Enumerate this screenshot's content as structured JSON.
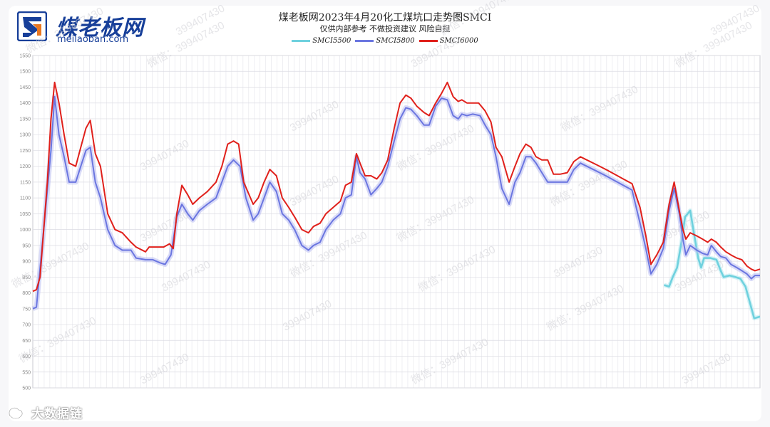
{
  "logo": {
    "name_cn": "煤老板网",
    "domain": "meilaoban.com"
  },
  "watermark": {
    "text": "399407430",
    "prefix": "微信："
  },
  "footer": {
    "brand": "大数据链"
  },
  "colors": {
    "SMCI5500": "#6fd1de",
    "SMCI5800": "#6b76e0",
    "SMCI6000": "#e0201b",
    "brand": "#173f99"
  },
  "chart_data": {
    "type": "line",
    "title": "煤老板网2023年4月20化工煤坑口走势图SMCI",
    "subtitle": "仅供内部参考 不做投资建议 风险自担",
    "ylim": [
      500,
      1550
    ],
    "yticks": [
      500,
      550,
      600,
      650,
      700,
      750,
      800,
      850,
      900,
      950,
      1000,
      1050,
      1100,
      1150,
      1200,
      1250,
      1300,
      1350,
      1400,
      1450,
      1500,
      1550
    ],
    "xlim": [
      0,
      100
    ],
    "grid": true,
    "legend_position": "top-center",
    "series": [
      {
        "name": "SMCI5500",
        "points": [
          [
            86.8,
            825
          ],
          [
            87.5,
            820
          ],
          [
            88.0,
            850
          ],
          [
            88.6,
            880
          ],
          [
            89.2,
            960
          ],
          [
            89.7,
            1040
          ],
          [
            90.4,
            1060
          ],
          [
            90.9,
            990
          ],
          [
            91.5,
            910
          ],
          [
            91.9,
            880
          ],
          [
            92.3,
            910
          ],
          [
            93.2,
            910
          ],
          [
            94.0,
            905
          ],
          [
            94.6,
            870
          ],
          [
            95.0,
            850
          ],
          [
            95.8,
            855
          ],
          [
            96.6,
            850
          ],
          [
            97.3,
            845
          ],
          [
            98.0,
            820
          ],
          [
            98.6,
            770
          ],
          [
            99.2,
            720
          ],
          [
            100.0,
            725
          ]
        ]
      },
      {
        "name": "SMCI5800",
        "points": [
          [
            0,
            750
          ],
          [
            0.5,
            755
          ],
          [
            1.5,
            1000
          ],
          [
            2.5,
            1250
          ],
          [
            3.0,
            1420
          ],
          [
            3.6,
            1300
          ],
          [
            4.3,
            1230
          ],
          [
            5.0,
            1150
          ],
          [
            5.9,
            1150
          ],
          [
            6.6,
            1200
          ],
          [
            7.3,
            1250
          ],
          [
            7.9,
            1260
          ],
          [
            8.6,
            1150
          ],
          [
            9.3,
            1100
          ],
          [
            10.3,
            1000
          ],
          [
            11.3,
            950
          ],
          [
            12.3,
            935
          ],
          [
            13.5,
            935
          ],
          [
            14.2,
            910
          ],
          [
            15.5,
            905
          ],
          [
            16.5,
            905
          ],
          [
            17.5,
            895
          ],
          [
            18.2,
            890
          ],
          [
            19.0,
            920
          ],
          [
            19.8,
            1040
          ],
          [
            20.5,
            1080
          ],
          [
            21.3,
            1050
          ],
          [
            22.0,
            1030
          ],
          [
            22.9,
            1060
          ],
          [
            24.0,
            1080
          ],
          [
            25.2,
            1100
          ],
          [
            26.0,
            1150
          ],
          [
            26.8,
            1200
          ],
          [
            27.6,
            1220
          ],
          [
            28.5,
            1200
          ],
          [
            29.3,
            1100
          ],
          [
            30.3,
            1030
          ],
          [
            31.0,
            1050
          ],
          [
            31.8,
            1100
          ],
          [
            32.6,
            1150
          ],
          [
            33.5,
            1120
          ],
          [
            34.3,
            1050
          ],
          [
            35.2,
            1030
          ],
          [
            36.0,
            1000
          ],
          [
            37.0,
            950
          ],
          [
            37.9,
            935
          ],
          [
            38.6,
            950
          ],
          [
            39.5,
            960
          ],
          [
            40.3,
            1000
          ],
          [
            41.3,
            1030
          ],
          [
            42.3,
            1050
          ],
          [
            43.0,
            1100
          ],
          [
            43.8,
            1110
          ],
          [
            44.5,
            1230
          ],
          [
            45.0,
            1180
          ],
          [
            45.7,
            1160
          ],
          [
            46.5,
            1110
          ],
          [
            47.3,
            1130
          ],
          [
            48.0,
            1150
          ],
          [
            48.8,
            1200
          ],
          [
            49.7,
            1280
          ],
          [
            50.5,
            1350
          ],
          [
            51.3,
            1385
          ],
          [
            52.0,
            1380
          ],
          [
            52.8,
            1360
          ],
          [
            53.8,
            1330
          ],
          [
            54.5,
            1330
          ],
          [
            55.4,
            1390
          ],
          [
            56.2,
            1415
          ],
          [
            57.0,
            1410
          ],
          [
            57.8,
            1360
          ],
          [
            58.5,
            1350
          ],
          [
            59.0,
            1365
          ],
          [
            59.7,
            1360
          ],
          [
            60.5,
            1365
          ],
          [
            61.5,
            1360
          ],
          [
            62.2,
            1330
          ],
          [
            63.0,
            1300
          ],
          [
            63.7,
            1230
          ],
          [
            64.5,
            1130
          ],
          [
            65.5,
            1080
          ],
          [
            66.3,
            1150
          ],
          [
            67.0,
            1180
          ],
          [
            67.8,
            1230
          ],
          [
            68.5,
            1230
          ],
          [
            69.2,
            1210
          ],
          [
            70.0,
            1180
          ],
          [
            70.8,
            1150
          ],
          [
            71.6,
            1150
          ],
          [
            72.5,
            1150
          ],
          [
            73.5,
            1150
          ],
          [
            74.4,
            1190
          ],
          [
            75.3,
            1210
          ],
          [
            76.2,
            1200
          ],
          [
            77.5,
            1185
          ],
          [
            78.8,
            1170
          ],
          [
            80.0,
            1155
          ],
          [
            81.2,
            1140
          ],
          [
            82.4,
            1125
          ],
          [
            83.5,
            1020
          ],
          [
            84.3,
            940
          ],
          [
            85.0,
            860
          ],
          [
            85.8,
            890
          ],
          [
            86.7,
            940
          ],
          [
            87.5,
            1060
          ],
          [
            88.2,
            1130
          ],
          [
            88.9,
            1050
          ],
          [
            89.4,
            970
          ],
          [
            89.8,
            920
          ],
          [
            90.4,
            950
          ],
          [
            91.3,
            935
          ],
          [
            92.1,
            925
          ],
          [
            92.8,
            920
          ],
          [
            93.3,
            950
          ],
          [
            94.0,
            930
          ],
          [
            94.6,
            915
          ],
          [
            95.3,
            910
          ],
          [
            96.0,
            890
          ],
          [
            96.8,
            880
          ],
          [
            97.5,
            870
          ],
          [
            98.2,
            860
          ],
          [
            98.8,
            845
          ],
          [
            99.3,
            855
          ],
          [
            100.0,
            855
          ]
        ]
      },
      {
        "name": "SMCI6000",
        "points": [
          [
            0,
            805
          ],
          [
            0.5,
            810
          ],
          [
            1.0,
            850
          ],
          [
            2.0,
            1150
          ],
          [
            2.5,
            1350
          ],
          [
            3.0,
            1465
          ],
          [
            3.6,
            1400
          ],
          [
            4.3,
            1300
          ],
          [
            5.0,
            1210
          ],
          [
            5.9,
            1200
          ],
          [
            6.6,
            1260
          ],
          [
            7.3,
            1320
          ],
          [
            7.9,
            1345
          ],
          [
            8.6,
            1240
          ],
          [
            9.3,
            1200
          ],
          [
            10.3,
            1050
          ],
          [
            11.3,
            1000
          ],
          [
            12.3,
            990
          ],
          [
            13.5,
            960
          ],
          [
            14.2,
            945
          ],
          [
            15.5,
            930
          ],
          [
            16.0,
            945
          ],
          [
            17.0,
            945
          ],
          [
            18.0,
            945
          ],
          [
            18.8,
            955
          ],
          [
            19.3,
            940
          ],
          [
            19.8,
            1050
          ],
          [
            20.5,
            1140
          ],
          [
            21.3,
            1110
          ],
          [
            22.0,
            1080
          ],
          [
            22.9,
            1100
          ],
          [
            24.0,
            1120
          ],
          [
            25.2,
            1150
          ],
          [
            26.0,
            1200
          ],
          [
            26.8,
            1270
          ],
          [
            27.6,
            1280
          ],
          [
            28.3,
            1270
          ],
          [
            29.0,
            1150
          ],
          [
            30.3,
            1080
          ],
          [
            31.0,
            1100
          ],
          [
            31.8,
            1150
          ],
          [
            32.6,
            1190
          ],
          [
            33.5,
            1170
          ],
          [
            34.3,
            1100
          ],
          [
            35.2,
            1070
          ],
          [
            36.0,
            1040
          ],
          [
            37.0,
            1000
          ],
          [
            37.9,
            990
          ],
          [
            38.6,
            1010
          ],
          [
            39.5,
            1020
          ],
          [
            40.3,
            1050
          ],
          [
            41.3,
            1070
          ],
          [
            42.3,
            1090
          ],
          [
            43.0,
            1140
          ],
          [
            43.8,
            1150
          ],
          [
            44.5,
            1240
          ],
          [
            45.0,
            1210
          ],
          [
            45.7,
            1170
          ],
          [
            46.5,
            1170
          ],
          [
            47.3,
            1160
          ],
          [
            48.0,
            1180
          ],
          [
            48.8,
            1220
          ],
          [
            49.7,
            1320
          ],
          [
            50.5,
            1400
          ],
          [
            51.3,
            1425
          ],
          [
            52.0,
            1415
          ],
          [
            52.8,
            1390
          ],
          [
            53.8,
            1370
          ],
          [
            54.5,
            1360
          ],
          [
            55.4,
            1400
          ],
          [
            56.2,
            1430
          ],
          [
            57.0,
            1465
          ],
          [
            57.8,
            1420
          ],
          [
            58.5,
            1405
          ],
          [
            59.0,
            1410
          ],
          [
            59.7,
            1400
          ],
          [
            60.5,
            1400
          ],
          [
            61.3,
            1400
          ],
          [
            62.2,
            1375
          ],
          [
            63.0,
            1340
          ],
          [
            63.7,
            1260
          ],
          [
            64.5,
            1230
          ],
          [
            65.5,
            1150
          ],
          [
            66.3,
            1200
          ],
          [
            67.0,
            1240
          ],
          [
            67.8,
            1270
          ],
          [
            68.5,
            1260
          ],
          [
            69.2,
            1230
          ],
          [
            70.0,
            1220
          ],
          [
            70.8,
            1220
          ],
          [
            71.6,
            1175
          ],
          [
            72.5,
            1175
          ],
          [
            73.5,
            1180
          ],
          [
            74.4,
            1215
          ],
          [
            75.3,
            1230
          ],
          [
            76.2,
            1220
          ],
          [
            77.5,
            1205
          ],
          [
            78.8,
            1190
          ],
          [
            80.0,
            1175
          ],
          [
            81.2,
            1160
          ],
          [
            82.4,
            1145
          ],
          [
            83.5,
            1070
          ],
          [
            84.3,
            980
          ],
          [
            85.0,
            890
          ],
          [
            85.8,
            920
          ],
          [
            86.7,
            960
          ],
          [
            87.5,
            1080
          ],
          [
            88.2,
            1150
          ],
          [
            88.9,
            1060
          ],
          [
            89.4,
            1000
          ],
          [
            89.8,
            970
          ],
          [
            90.4,
            990
          ],
          [
            91.3,
            980
          ],
          [
            92.1,
            970
          ],
          [
            92.8,
            960
          ],
          [
            93.3,
            970
          ],
          [
            94.0,
            960
          ],
          [
            94.6,
            945
          ],
          [
            95.3,
            930
          ],
          [
            96.0,
            920
          ],
          [
            96.8,
            910
          ],
          [
            97.5,
            905
          ],
          [
            98.2,
            885
          ],
          [
            98.8,
            875
          ],
          [
            99.3,
            870
          ],
          [
            100.0,
            875
          ]
        ]
      }
    ]
  }
}
